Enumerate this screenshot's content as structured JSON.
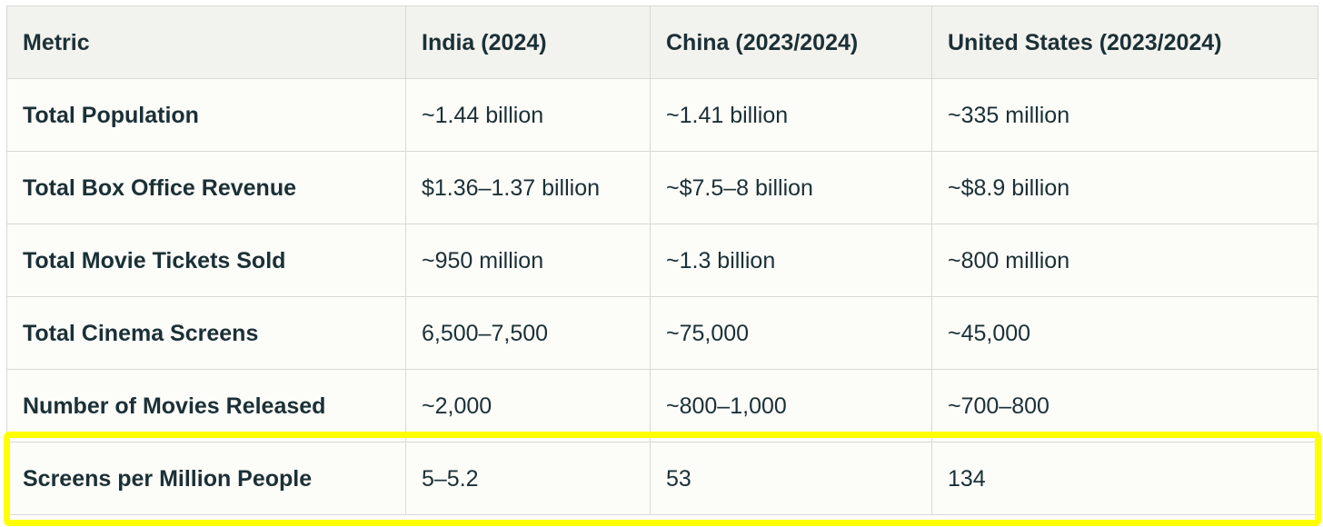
{
  "table": {
    "headers": [
      "Metric",
      "India (2024)",
      "China (2023/2024)",
      "United States (2023/2024)"
    ],
    "rows": [
      [
        "Total Population",
        "~1.44 billion",
        "~1.41 billion",
        "~335 million"
      ],
      [
        "Total Box Office Revenue",
        "$1.36–1.37 billion",
        "~$7.5–8 billion",
        "~$8.9 billion"
      ],
      [
        "Total Movie Tickets Sold",
        "~950 million",
        "~1.3 billion",
        "~800 million"
      ],
      [
        "Total Cinema Screens",
        "6,500–7,500",
        "~75,000",
        "~45,000"
      ],
      [
        "Number of Movies Released",
        "~2,000",
        "~800–1,000",
        "~700–800"
      ],
      [
        "Screens per Million People",
        "5–5.2",
        "53",
        "134"
      ]
    ],
    "highlighted_row": "Screens per Million People"
  },
  "colors": {
    "highlight": "#ffff00",
    "text": "#1b3036",
    "header_bg": "#f2f2ee",
    "cell_bg": "#fcfcf9",
    "border": "#d8dad6"
  }
}
